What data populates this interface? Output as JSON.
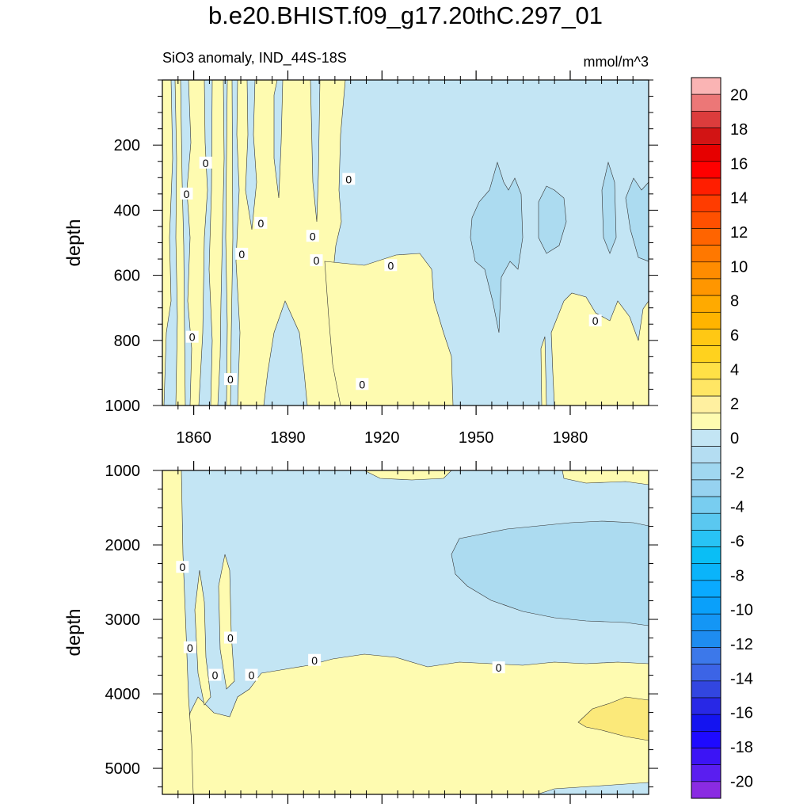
{
  "title": "b.e20.BHIST.f09_g17.20thC.297_01",
  "left_label": "SiO3 anomaly, IND_44S-18S",
  "right_label": "mmol/m^3",
  "colors": {
    "positive_fill": "#fefbb0",
    "positive_strong_fill": "#fbe97a",
    "negative_fill": "#c3e5f4",
    "negative_strong_fill": "#acdbf0",
    "contour_line": "#333333"
  },
  "chart_data": [
    {
      "type": "heatmap",
      "panel": "upper",
      "ylabel": "depth",
      "xlim": [
        1850,
        2005
      ],
      "ylim": [
        1000,
        0
      ],
      "x_ticks": [
        1860,
        1890,
        1920,
        1950,
        1980
      ],
      "x_tick_labels": [
        "1860",
        "1890",
        "1920",
        "1950",
        "1980"
      ],
      "y_ticks": [
        200,
        400,
        600,
        800,
        1000
      ],
      "y_tick_labels": [
        "200",
        "400",
        "600",
        "800",
        "1000"
      ],
      "contour_labels": [
        {
          "text": "0",
          "x": 1863.8,
          "y": 255
        },
        {
          "text": "0",
          "x": 1857.7,
          "y": 350
        },
        {
          "text": "0",
          "x": 1859.5,
          "y": 790
        },
        {
          "text": "0",
          "x": 1871.7,
          "y": 920
        },
        {
          "text": "0",
          "x": 1875.3,
          "y": 535
        },
        {
          "text": "0",
          "x": 1881.4,
          "y": 440
        },
        {
          "text": "0",
          "x": 1897.9,
          "y": 480
        },
        {
          "text": "0",
          "x": 1899.1,
          "y": 555
        },
        {
          "text": "0",
          "x": 1909.4,
          "y": 305
        },
        {
          "text": "0",
          "x": 1913.7,
          "y": 935
        },
        {
          "text": "0",
          "x": 1922.8,
          "y": 570
        },
        {
          "text": "0",
          "x": 1988.0,
          "y": 740
        }
      ]
    },
    {
      "type": "heatmap",
      "panel": "lower",
      "ylabel": "depth",
      "xlim": [
        1850,
        2005
      ],
      "ylim": [
        5350,
        1000
      ],
      "y_ticks": [
        1000,
        2000,
        3000,
        4000,
        5000
      ],
      "y_tick_labels": [
        "1000",
        "2000",
        "3000",
        "4000",
        "5000"
      ],
      "contour_labels": [
        {
          "text": "0",
          "x": 1856.4,
          "y": 2300
        },
        {
          "text": "0",
          "x": 1858.8,
          "y": 3380
        },
        {
          "text": "0",
          "x": 1871.7,
          "y": 3250
        },
        {
          "text": "0",
          "x": 1866.8,
          "y": 3750
        },
        {
          "text": "0",
          "x": 1878.4,
          "y": 3750
        },
        {
          "text": "0",
          "x": 1898.5,
          "y": 3550
        },
        {
          "text": "0",
          "x": 1957.2,
          "y": 3650
        }
      ]
    },
    {
      "type": "colorbar",
      "levels": [
        -21,
        -20,
        -19,
        -18,
        -17,
        -16,
        -15,
        -14,
        -13,
        -12,
        -11,
        -10,
        -9,
        -8,
        -7,
        -6,
        -5,
        -4,
        -3,
        -2,
        -1,
        0,
        1,
        2,
        3,
        4,
        5,
        6,
        7,
        8,
        9,
        10,
        11,
        12,
        13,
        14,
        15,
        16,
        17,
        18,
        19,
        20,
        21
      ],
      "colors": [
        "#8a2be2",
        "#5a1ef0",
        "#3c14f5",
        "#1e0aff",
        "#1414f0",
        "#2828e6",
        "#3246e0",
        "#3c64e6",
        "#3c78ea",
        "#1e8cf0",
        "#1496f5",
        "#0aa0fa",
        "#0aaaff",
        "#0ab4fa",
        "#0abef5",
        "#28c3f5",
        "#5ac8f0",
        "#78cdf0",
        "#96d2f0",
        "#a0d7f0",
        "#b4ddf2",
        "#c3e5f4",
        "#fefbb0",
        "#fff0a0",
        "#ffe664",
        "#ffe146",
        "#ffd21e",
        "#ffc814",
        "#ffb400",
        "#ffaa00",
        "#ff9600",
        "#ff8c00",
        "#ff7800",
        "#ff6400",
        "#ff5000",
        "#ff3c00",
        "#ff1e00",
        "#ff0000",
        "#e60000",
        "#d21414",
        "#dc3c3c",
        "#ec7777",
        "#fab4b4"
      ],
      "tick_labels": [
        "20",
        "18",
        "16",
        "14",
        "12",
        "10",
        "8",
        "6",
        "4",
        "2",
        "0",
        "-2",
        "-4",
        "-6",
        "-8",
        "-10",
        "-12",
        "-14",
        "-16",
        "-18",
        "-20"
      ],
      "tick_values": [
        20,
        18,
        16,
        14,
        12,
        10,
        8,
        6,
        4,
        2,
        0,
        -2,
        -4,
        -6,
        -8,
        -10,
        -12,
        -14,
        -16,
        -18,
        -20
      ]
    }
  ]
}
